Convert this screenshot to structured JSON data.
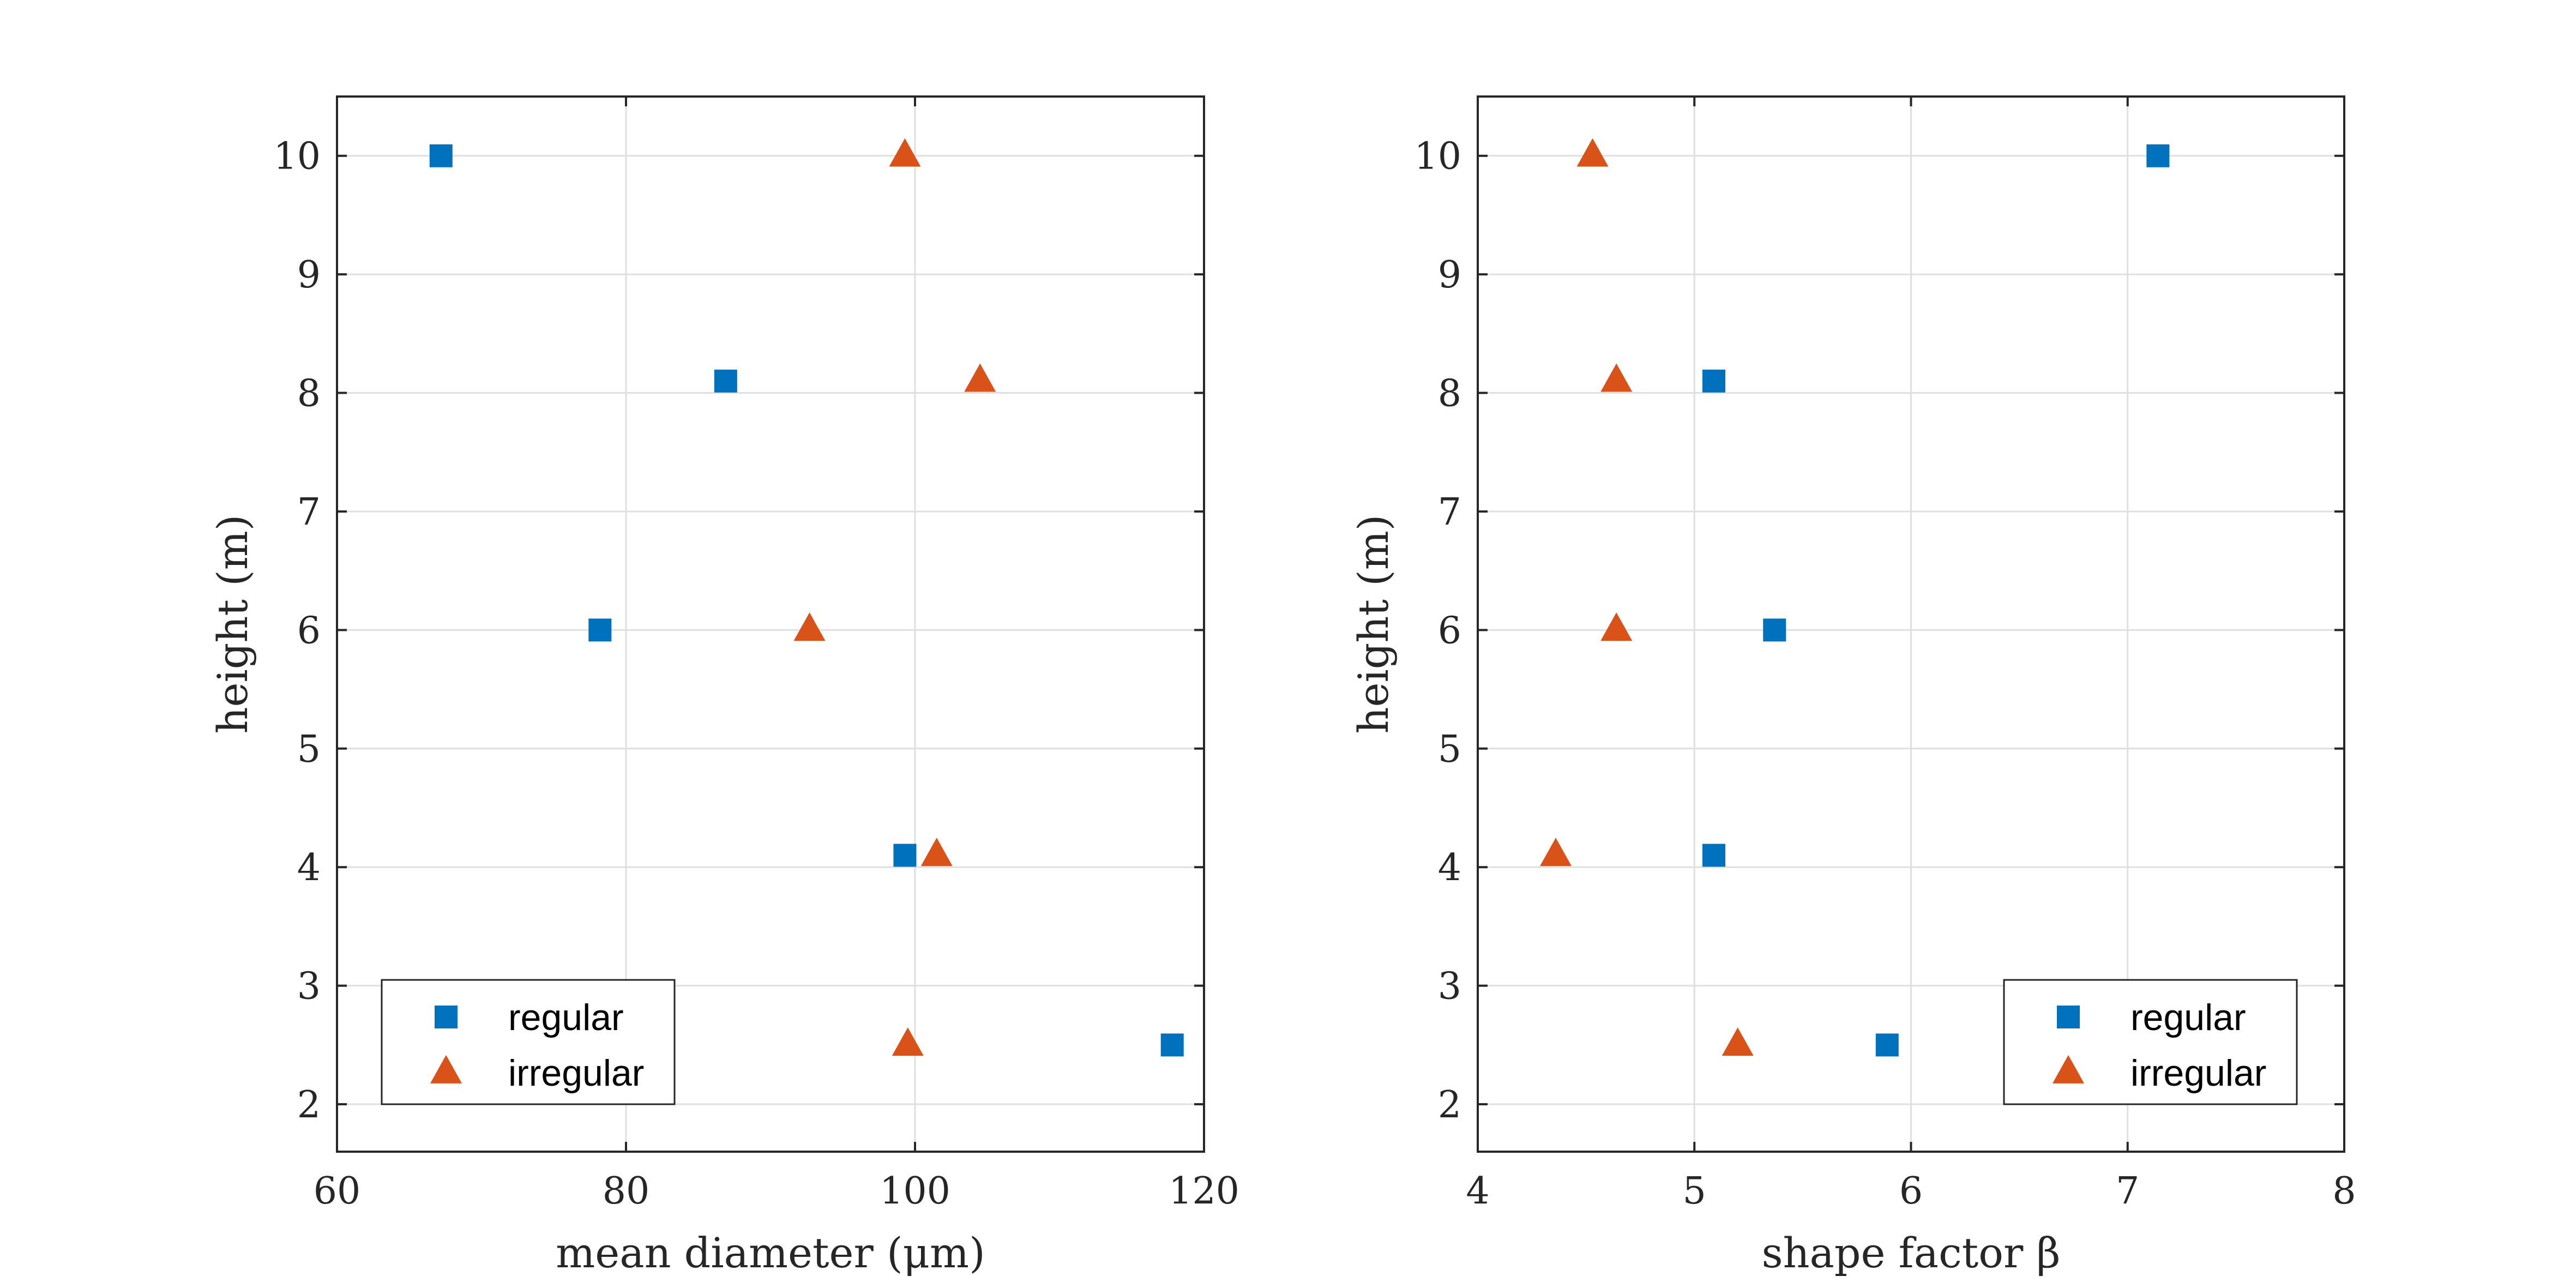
{
  "colors": {
    "regular": "#0072bd",
    "irregular": "#d95319",
    "axis": "#262626",
    "grid": "#dfdfdf"
  },
  "chart_data": [
    {
      "type": "scatter",
      "xlabel": "mean diameter (μm)",
      "ylabel": "height (m)",
      "xlim": [
        60,
        120
      ],
      "ylim": [
        1.6,
        10.5
      ],
      "xticks": [
        60,
        80,
        100,
        120
      ],
      "yticks": [
        2,
        3,
        4,
        5,
        6,
        7,
        8,
        9,
        10
      ],
      "grid": true,
      "legend_position": "bottom-left",
      "series": [
        {
          "name": "regular",
          "marker": "square",
          "points": [
            [
              67.2,
              10
            ],
            [
              86.9,
              8.1
            ],
            [
              78.2,
              6
            ],
            [
              99.3,
              4.1
            ],
            [
              117.8,
              2.5
            ]
          ]
        },
        {
          "name": "irregular",
          "marker": "triangle",
          "points": [
            [
              99.3,
              10
            ],
            [
              104.5,
              8.1
            ],
            [
              92.7,
              6
            ],
            [
              101.5,
              4.1
            ],
            [
              99.5,
              2.5
            ]
          ]
        }
      ]
    },
    {
      "type": "scatter",
      "xlabel": "shape factor β",
      "ylabel": "height (m)",
      "xlim": [
        4,
        8
      ],
      "ylim": [
        1.6,
        10.5
      ],
      "xticks": [
        4,
        5,
        6,
        7,
        8
      ],
      "yticks": [
        2,
        3,
        4,
        5,
        6,
        7,
        8,
        9,
        10
      ],
      "grid": true,
      "legend_position": "bottom-right",
      "series": [
        {
          "name": "regular",
          "marker": "square",
          "points": [
            [
              7.14,
              10
            ],
            [
              5.09,
              8.1
            ],
            [
              5.37,
              6
            ],
            [
              5.09,
              4.1
            ],
            [
              5.89,
              2.5
            ]
          ]
        },
        {
          "name": "irregular",
          "marker": "triangle",
          "points": [
            [
              4.53,
              10
            ],
            [
              4.64,
              8.1
            ],
            [
              4.64,
              6
            ],
            [
              4.36,
              4.1
            ],
            [
              5.2,
              2.5
            ]
          ]
        }
      ]
    }
  ]
}
